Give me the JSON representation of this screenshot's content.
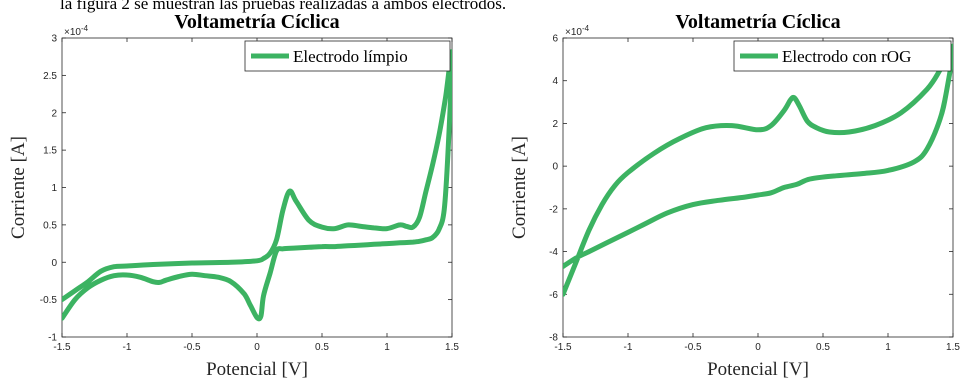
{
  "caption": "la figura 2 se muestran las pruebas realizadas a ambos electrodos.",
  "chart_data": [
    {
      "type": "line",
      "title": "Voltametría Cíclica",
      "xlabel": "Potencial [V]",
      "ylabel": "Corriente [A]",
      "y_exponent_label": "×10",
      "y_exponent_power": "-4",
      "xlim": [
        -1.5,
        1.5
      ],
      "ylim": [
        -1,
        3
      ],
      "xticks": [
        -1.5,
        -1,
        -0.5,
        0,
        0.5,
        1,
        1.5
      ],
      "xtick_labels": [
        "-1.5",
        "-1",
        "-0.5",
        "0",
        "0.5",
        "1",
        "1.5"
      ],
      "yticks": [
        -1,
        -0.5,
        0,
        0.5,
        1,
        1.5,
        2,
        2.5,
        3
      ],
      "ytick_labels": [
        "-1",
        "-0.5",
        "0",
        "0.5",
        "1",
        "1.5",
        "2",
        "2.5",
        "3"
      ],
      "legend_position": "top-right",
      "color": "#3cb362",
      "series": [
        {
          "name": "Electrodo límpio",
          "x": [
            -1.5,
            -1.4,
            -1.3,
            -1.2,
            -1.1,
            -1.0,
            -0.8,
            -0.5,
            -0.2,
            0.0,
            0.05,
            0.1,
            0.15,
            0.2,
            0.25,
            0.3,
            0.4,
            0.5,
            0.6,
            0.7,
            0.8,
            0.9,
            1.0,
            1.1,
            1.15,
            1.2,
            1.25,
            1.3,
            1.35,
            1.4,
            1.45,
            1.5,
            1.47,
            1.44,
            1.4,
            1.35,
            1.3,
            1.25,
            1.2,
            1.1,
            1.0,
            0.9,
            0.8,
            0.7,
            0.6,
            0.5,
            0.4,
            0.3,
            0.2,
            0.15,
            0.1,
            0.05,
            0.03,
            0.0,
            -0.05,
            -0.1,
            -0.2,
            -0.3,
            -0.4,
            -0.5,
            -0.6,
            -0.7,
            -0.75,
            -0.8,
            -0.9,
            -1.0,
            -1.1,
            -1.2,
            -1.3,
            -1.4,
            -1.5
          ],
          "y": [
            -0.5,
            -0.38,
            -0.26,
            -0.12,
            -0.06,
            -0.05,
            -0.03,
            -0.01,
            0.0,
            0.02,
            0.05,
            0.12,
            0.3,
            0.7,
            0.95,
            0.82,
            0.56,
            0.47,
            0.45,
            0.5,
            0.48,
            0.46,
            0.45,
            0.5,
            0.48,
            0.47,
            0.6,
            0.95,
            1.3,
            1.7,
            2.2,
            2.8,
            1.5,
            0.7,
            0.44,
            0.33,
            0.3,
            0.28,
            0.27,
            0.26,
            0.25,
            0.24,
            0.23,
            0.22,
            0.21,
            0.21,
            0.2,
            0.19,
            0.18,
            0.15,
            -0.15,
            -0.45,
            -0.72,
            -0.74,
            -0.58,
            -0.42,
            -0.26,
            -0.2,
            -0.18,
            -0.16,
            -0.19,
            -0.24,
            -0.27,
            -0.26,
            -0.2,
            -0.17,
            -0.18,
            -0.24,
            -0.34,
            -0.5,
            -0.75
          ]
        }
      ]
    },
    {
      "type": "line",
      "title": "Voltametría Cíclica",
      "xlabel": "Potencial [V]",
      "ylabel": "Corriente [A]",
      "y_exponent_label": "×10",
      "y_exponent_power": "-4",
      "xlim": [
        -1.5,
        1.5
      ],
      "ylim": [
        -8,
        6
      ],
      "xticks": [
        -1.5,
        -1,
        -0.5,
        0,
        0.5,
        1,
        1.5
      ],
      "xtick_labels": [
        "-1.5",
        "-1",
        "-0.5",
        "0",
        "0.5",
        "1",
        "1.5"
      ],
      "yticks": [
        -8,
        -6,
        -4,
        -2,
        0,
        2,
        4,
        6
      ],
      "ytick_labels": [
        "-8",
        "-6",
        "-4",
        "-2",
        "0",
        "2",
        "4",
        "6"
      ],
      "legend_position": "top-right",
      "color": "#3cb362",
      "series": [
        {
          "name": "Electrodo con rOG",
          "x": [
            -1.5,
            -1.4,
            -1.3,
            -1.2,
            -1.1,
            -1.0,
            -0.8,
            -0.6,
            -0.4,
            -0.2,
            0.0,
            0.1,
            0.2,
            0.25,
            0.28,
            0.32,
            0.38,
            0.45,
            0.55,
            0.7,
            0.9,
            1.1,
            1.3,
            1.4,
            1.5,
            1.45,
            1.4,
            1.3,
            1.2,
            1.0,
            0.8,
            0.6,
            0.4,
            0.3,
            0.2,
            0.1,
            0.0,
            -0.1,
            -0.3,
            -0.5,
            -0.7,
            -0.9,
            -1.1,
            -1.3,
            -1.4,
            -1.5
          ],
          "y": [
            -6.0,
            -4.5,
            -3.0,
            -1.8,
            -0.9,
            -0.3,
            0.6,
            1.3,
            1.8,
            1.9,
            1.7,
            1.9,
            2.6,
            3.1,
            3.2,
            2.8,
            2.1,
            1.8,
            1.6,
            1.6,
            1.9,
            2.5,
            3.6,
            4.5,
            5.6,
            3.5,
            2.2,
            0.8,
            0.2,
            -0.2,
            -0.35,
            -0.45,
            -0.6,
            -0.85,
            -1.0,
            -1.25,
            -1.35,
            -1.45,
            -1.6,
            -1.8,
            -2.2,
            -2.8,
            -3.4,
            -4.0,
            -4.3,
            -4.7
          ]
        }
      ]
    }
  ]
}
